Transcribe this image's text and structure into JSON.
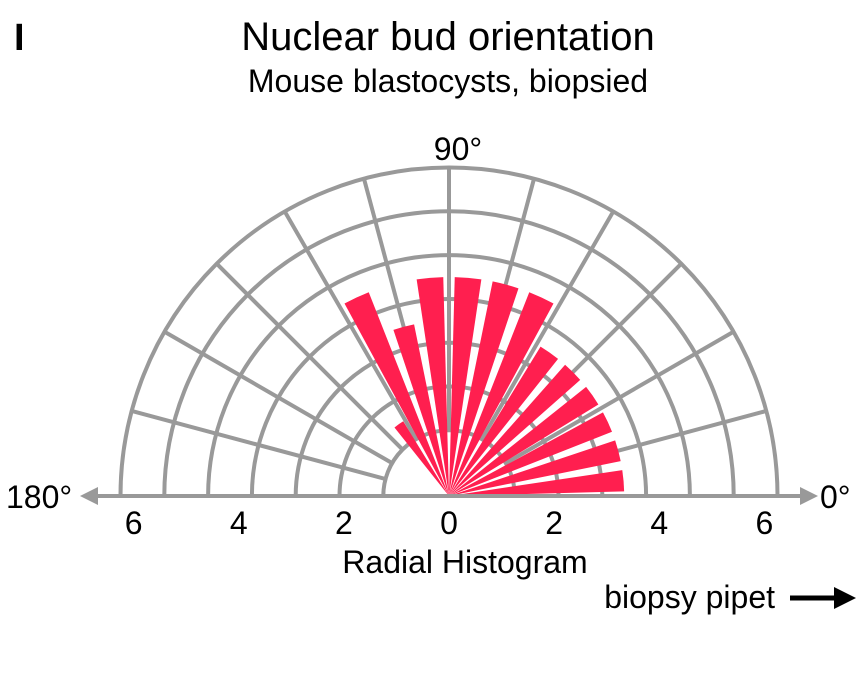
{
  "panel_label": "I",
  "chart_data": {
    "type": "radial-histogram",
    "title": "Nuclear bud orientation",
    "subtitle": "Mouse blastocysts, biopsied",
    "xlabel": "Radial Histogram",
    "direction_label": "biopsy pipet",
    "angle_labels": [
      "0°",
      "90°",
      "180°"
    ],
    "radial_ticks_left": [
      "6",
      "4",
      "2"
    ],
    "radial_ticks_right": [
      "0",
      "2",
      "4",
      "6"
    ],
    "rlim": [
      0,
      7.5
    ],
    "angle_range_deg": [
      0,
      180
    ],
    "bin_width_deg": 10,
    "bin_starts_deg": [
      0,
      10,
      20,
      30,
      40,
      50,
      60,
      70,
      80,
      90,
      100,
      110,
      120,
      130,
      140,
      150,
      160,
      170
    ],
    "counts": [
      4,
      4,
      4,
      4,
      4,
      4,
      5,
      5,
      5,
      5,
      4,
      5,
      2,
      0,
      0,
      0,
      0,
      0
    ],
    "bar_color": "#ff1f4f",
    "grid_color": "#999999"
  }
}
